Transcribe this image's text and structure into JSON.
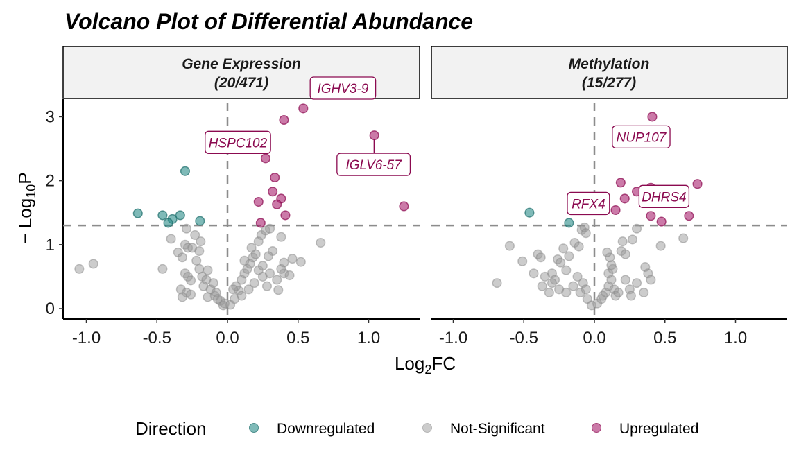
{
  "chart_data": {
    "type": "scatter",
    "title": "Volcano Plot of Differential Abundance",
    "xlabel": "Log2FC",
    "ylabel": "-Log10P",
    "xlim": [
      -1.17,
      1.36
    ],
    "ylim": [
      -0.16,
      3.28
    ],
    "x_ticks": [
      "-1.0",
      "-0.5",
      "0.0",
      "0.5",
      "1.0"
    ],
    "y_ticks": [
      "0",
      "1",
      "2",
      "3"
    ],
    "grid": false,
    "reference_lines": {
      "x": 0,
      "y": 1.3
    },
    "legend": {
      "title": "Direction",
      "position": "bottom",
      "entries": [
        "Downregulated",
        "Not-Significant",
        "Upregulated"
      ]
    },
    "colors": {
      "Downregulated": "#2a8c88",
      "Not-Significant": "#9a9a9a",
      "Upregulated": "#a8226e",
      "label": "#8b0a50"
    },
    "panels": [
      {
        "strip_line1": "Gene Expression",
        "strip_line2": "(20/471)",
        "Upregulated": [
          [
            0.537,
            3.13
          ],
          [
            0.4,
            2.95
          ],
          [
            1.04,
            2.71
          ],
          [
            0.27,
            2.35
          ],
          [
            0.335,
            2.05
          ],
          [
            0.32,
            1.83
          ],
          [
            0.38,
            1.72
          ],
          [
            0.22,
            1.67
          ],
          [
            0.35,
            1.63
          ],
          [
            0.41,
            1.46
          ],
          [
            1.25,
            1.6
          ],
          [
            0.235,
            1.34
          ]
        ],
        "Downregulated": [
          [
            -0.3,
            2.15
          ],
          [
            -0.635,
            1.49
          ],
          [
            -0.46,
            1.46
          ],
          [
            -0.39,
            1.4
          ],
          [
            -0.335,
            1.46
          ],
          [
            -0.42,
            1.34
          ],
          [
            -0.195,
            1.37
          ]
        ],
        "Not-Significant": [
          [
            -1.05,
            0.62
          ],
          [
            -0.95,
            0.7
          ],
          [
            -0.46,
            0.62
          ],
          [
            -0.4,
            1.09
          ],
          [
            -0.3,
            1.0
          ],
          [
            -0.28,
            0.95
          ],
          [
            -0.35,
            0.88
          ],
          [
            -0.32,
            0.8
          ],
          [
            -0.25,
            0.95
          ],
          [
            -0.2,
            0.9
          ],
          [
            -0.22,
            0.75
          ],
          [
            -0.14,
            0.6
          ],
          [
            -0.3,
            0.55
          ],
          [
            -0.28,
            0.5
          ],
          [
            -0.18,
            0.5
          ],
          [
            -0.15,
            0.45
          ],
          [
            -0.26,
            0.44
          ],
          [
            -0.33,
            0.3
          ],
          [
            -0.29,
            0.25
          ],
          [
            -0.32,
            0.18
          ],
          [
            -0.26,
            0.22
          ],
          [
            -0.12,
            0.3
          ],
          [
            -0.09,
            0.2
          ],
          [
            -0.05,
            0.12
          ],
          [
            -0.03,
            0.05
          ],
          [
            -0.08,
            0.25
          ],
          [
            -0.17,
            0.35
          ],
          [
            -0.2,
            0.62
          ],
          [
            -0.23,
            1.15
          ],
          [
            -0.29,
            1.25
          ],
          [
            -0.19,
            1.05
          ],
          [
            -0.1,
            0.4
          ],
          [
            -0.07,
            0.15
          ],
          [
            -0.14,
            0.18
          ],
          [
            -0.02,
            0.08
          ],
          [
            0.02,
            0.06
          ],
          [
            0.05,
            0.15
          ],
          [
            0.08,
            0.28
          ],
          [
            0.1,
            0.45
          ],
          [
            0.12,
            0.55
          ],
          [
            0.14,
            0.62
          ],
          [
            0.16,
            0.7
          ],
          [
            0.18,
            0.8
          ],
          [
            0.2,
            0.85
          ],
          [
            0.12,
            0.75
          ],
          [
            0.17,
            0.95
          ],
          [
            0.22,
            1.05
          ],
          [
            0.24,
            1.15
          ],
          [
            0.27,
            1.22
          ],
          [
            0.3,
            1.25
          ],
          [
            0.38,
            1.12
          ],
          [
            0.32,
            0.9
          ],
          [
            0.29,
            0.82
          ],
          [
            0.35,
            0.45
          ],
          [
            0.4,
            0.55
          ],
          [
            0.38,
            0.62
          ],
          [
            0.44,
            0.52
          ],
          [
            0.36,
            0.29
          ],
          [
            0.52,
            0.73
          ],
          [
            0.66,
            1.03
          ],
          [
            0.28,
            0.35
          ],
          [
            0.06,
            0.35
          ],
          [
            0.1,
            0.2
          ],
          [
            0.22,
            0.6
          ],
          [
            0.25,
            0.5
          ],
          [
            0.04,
            0.3
          ],
          [
            0.15,
            0.3
          ],
          [
            0.3,
            0.55
          ],
          [
            0.46,
            0.78
          ],
          [
            0.4,
            0.72
          ],
          [
            0.25,
            0.67
          ],
          [
            0.19,
            0.4
          ]
        ],
        "labels": [
          {
            "text": "HSPC102",
            "point": [
              0.27,
              2.35
            ]
          },
          {
            "text": "IGHV3-9",
            "point": [
              0.4,
              2.95
            ]
          },
          {
            "text": "IGLV6-57",
            "point": [
              1.04,
              2.71
            ]
          }
        ]
      },
      {
        "strip_line1": "Methylation",
        "strip_line2": "(15/277)",
        "Upregulated": [
          [
            0.41,
            3.0
          ],
          [
            0.186,
            1.97
          ],
          [
            0.4,
            1.89
          ],
          [
            0.73,
            1.95
          ],
          [
            0.215,
            1.72
          ],
          [
            0.3,
            1.83
          ],
          [
            0.15,
            1.54
          ],
          [
            0.4,
            1.45
          ],
          [
            0.475,
            1.36
          ],
          [
            0.67,
            1.45
          ]
        ],
        "Downregulated": [
          [
            -0.46,
            1.5
          ],
          [
            -0.18,
            1.34
          ]
        ],
        "Not-Significant": [
          [
            -0.69,
            0.4
          ],
          [
            -0.6,
            0.98
          ],
          [
            -0.51,
            0.74
          ],
          [
            -0.4,
            0.85
          ],
          [
            -0.38,
            0.8
          ],
          [
            -0.43,
            0.55
          ],
          [
            -0.35,
            0.5
          ],
          [
            -0.3,
            0.55
          ],
          [
            -0.28,
            0.45
          ],
          [
            -0.2,
            0.6
          ],
          [
            -0.22,
            0.94
          ],
          [
            -0.14,
            1.03
          ],
          [
            -0.11,
            0.97
          ],
          [
            -0.26,
            0.77
          ],
          [
            -0.24,
            0.72
          ],
          [
            -0.18,
            0.82
          ],
          [
            -0.3,
            0.4
          ],
          [
            -0.37,
            0.35
          ],
          [
            -0.25,
            0.3
          ],
          [
            -0.15,
            0.35
          ],
          [
            -0.1,
            0.25
          ],
          [
            -0.05,
            0.15
          ],
          [
            -0.02,
            0.05
          ],
          [
            -0.08,
            0.4
          ],
          [
            -0.12,
            0.5
          ],
          [
            -0.06,
            0.3
          ],
          [
            -0.2,
            0.25
          ],
          [
            -0.32,
            0.25
          ],
          [
            0.02,
            0.08
          ],
          [
            0.05,
            0.15
          ],
          [
            0.08,
            0.25
          ],
          [
            0.1,
            0.35
          ],
          [
            0.12,
            0.45
          ],
          [
            0.1,
            0.55
          ],
          [
            0.13,
            0.62
          ],
          [
            0.12,
            0.68
          ],
          [
            0.11,
            0.8
          ],
          [
            0.09,
            0.88
          ],
          [
            0.14,
            0.3
          ],
          [
            0.15,
            0.2
          ],
          [
            -0.09,
            1.23
          ],
          [
            -0.07,
            1.27
          ],
          [
            -0.06,
            1.18
          ],
          [
            0.2,
            1.05
          ],
          [
            0.27,
            1.08
          ],
          [
            0.19,
            0.9
          ],
          [
            0.3,
            1.25
          ],
          [
            0.22,
            0.85
          ],
          [
            0.36,
            0.65
          ],
          [
            0.38,
            0.55
          ],
          [
            0.4,
            0.45
          ],
          [
            0.35,
            0.25
          ],
          [
            0.25,
            0.3
          ],
          [
            0.22,
            0.45
          ],
          [
            0.3,
            0.4
          ],
          [
            0.47,
            0.98
          ],
          [
            0.63,
            1.1
          ],
          [
            0.26,
            0.2
          ],
          [
            0.06,
            0.2
          ],
          [
            0.17,
            0.25
          ]
        ],
        "labels": [
          {
            "text": "NUP107",
            "point": [
              0.41,
              3.0
            ]
          },
          {
            "text": "RFX4",
            "point": [
              -0.18,
              1.34
            ]
          },
          {
            "text": "DHRS4",
            "point": [
              0.4,
              1.45
            ]
          }
        ]
      }
    ]
  }
}
